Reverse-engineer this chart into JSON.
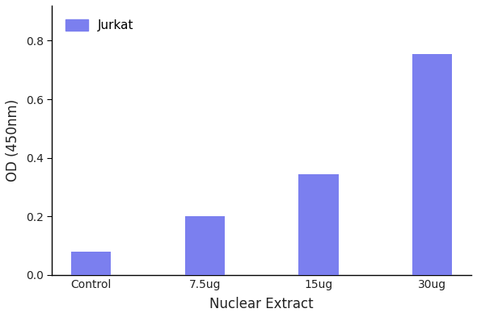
{
  "categories": [
    "Control",
    "7.5ug",
    "15ug",
    "30ug"
  ],
  "values": [
    0.08,
    0.2,
    0.345,
    0.755
  ],
  "bar_color": "#7b7fef",
  "bar_width": 0.35,
  "xlabel": "Nuclear Extract",
  "ylabel": "OD (450nm)",
  "ylim": [
    0,
    0.92
  ],
  "yticks": [
    0.0,
    0.2,
    0.4,
    0.6,
    0.8
  ],
  "legend_label": "Jurkat",
  "legend_color": "#7b7fef",
  "background_color": "#ffffff",
  "xlabel_fontsize": 12,
  "ylabel_fontsize": 12,
  "tick_fontsize": 10,
  "legend_fontsize": 11,
  "spine_color": "#000000",
  "figsize": [
    5.9,
    3.93
  ],
  "dpi": 100
}
